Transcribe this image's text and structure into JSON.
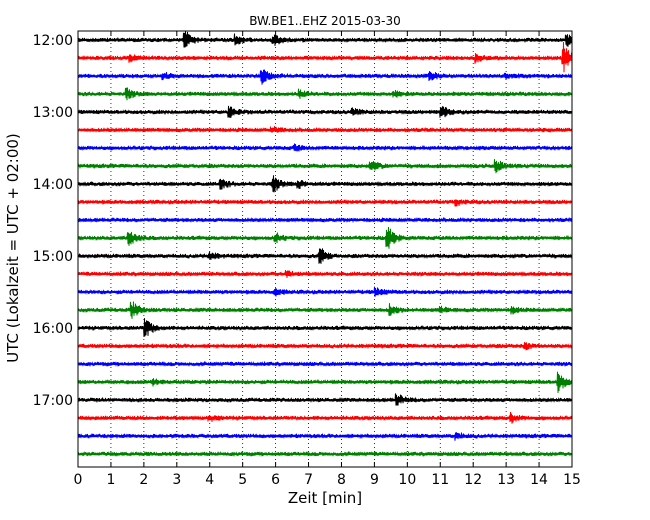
{
  "chart_data": {
    "type": "line",
    "title": "BW.BE1..EHZ 2015-03-30",
    "xlabel": "Zeit  [min]",
    "ylabel": "UTC (Lokalzeit = UTC + 02:00)",
    "xlim": [
      0,
      15
    ],
    "x_ticks": [
      "0",
      "1",
      "2",
      "3",
      "4",
      "5",
      "6",
      "7",
      "8",
      "9",
      "10",
      "11",
      "12",
      "13",
      "14",
      "15"
    ],
    "y_ticks": [
      "12:00",
      "13:00",
      "14:00",
      "15:00",
      "16:00",
      "17:00"
    ],
    "grid": "vertical dotted",
    "trace_colors": [
      "#000000",
      "#ff0000",
      "#0000ff",
      "#008000"
    ],
    "traces": [
      {
        "start": "12:00",
        "events": [
          [
            3.25,
            1.0
          ],
          [
            4.8,
            0.5
          ],
          [
            5.95,
            0.7
          ],
          [
            14.85,
            0.6
          ]
        ]
      },
      {
        "start": "12:15",
        "events": [
          [
            1.6,
            0.3
          ],
          [
            12.1,
            0.4
          ],
          [
            14.75,
            1.6
          ]
        ]
      },
      {
        "start": "12:30",
        "events": [
          [
            2.6,
            0.4
          ],
          [
            5.6,
            0.8
          ],
          [
            10.7,
            0.5
          ],
          [
            13.0,
            0.3
          ]
        ]
      },
      {
        "start": "12:45",
        "events": [
          [
            1.5,
            0.5
          ],
          [
            6.75,
            0.4
          ],
          [
            9.6,
            0.3
          ]
        ]
      },
      {
        "start": "13:00",
        "events": [
          [
            4.6,
            0.6
          ],
          [
            8.35,
            0.4
          ],
          [
            11.05,
            0.7
          ]
        ]
      },
      {
        "start": "13:15",
        "events": [
          [
            5.9,
            0.3
          ]
        ]
      },
      {
        "start": "13:30",
        "events": [
          [
            6.6,
            0.3
          ]
        ]
      },
      {
        "start": "13:45",
        "events": [
          [
            8.9,
            0.6
          ],
          [
            12.7,
            0.7
          ]
        ]
      },
      {
        "start": "14:00",
        "events": [
          [
            4.35,
            0.5
          ],
          [
            5.95,
            0.8
          ],
          [
            6.7,
            0.4
          ]
        ]
      },
      {
        "start": "14:15",
        "events": [
          [
            11.5,
            0.3
          ]
        ]
      },
      {
        "start": "14:30",
        "events": []
      },
      {
        "start": "14:45",
        "events": [
          [
            1.55,
            0.9
          ],
          [
            6.0,
            0.5
          ],
          [
            9.4,
            1.3
          ]
        ]
      },
      {
        "start": "15:00",
        "events": [
          [
            4.0,
            0.4
          ],
          [
            7.35,
            0.9
          ]
        ]
      },
      {
        "start": "15:15",
        "events": [
          [
            6.35,
            0.3
          ]
        ]
      },
      {
        "start": "15:30",
        "events": [
          [
            6.0,
            0.3
          ],
          [
            9.05,
            0.4
          ]
        ]
      },
      {
        "start": "15:45",
        "events": [
          [
            1.65,
            0.9
          ],
          [
            9.5,
            0.6
          ],
          [
            11.0,
            0.3
          ],
          [
            13.2,
            0.3
          ]
        ]
      },
      {
        "start": "16:00",
        "events": [
          [
            2.05,
            1.0
          ]
        ]
      },
      {
        "start": "16:15",
        "events": [
          [
            13.6,
            0.3
          ]
        ]
      },
      {
        "start": "16:30",
        "events": []
      },
      {
        "start": "16:45",
        "events": [
          [
            2.3,
            0.3
          ],
          [
            14.6,
            1.0
          ]
        ]
      },
      {
        "start": "17:00",
        "events": [
          [
            9.7,
            0.6
          ]
        ]
      },
      {
        "start": "17:15",
        "events": [
          [
            4.0,
            0.3
          ],
          [
            13.15,
            0.5
          ]
        ]
      },
      {
        "start": "17:30",
        "events": [
          [
            11.5,
            0.3
          ]
        ]
      },
      {
        "start": "17:45",
        "events": []
      }
    ]
  }
}
